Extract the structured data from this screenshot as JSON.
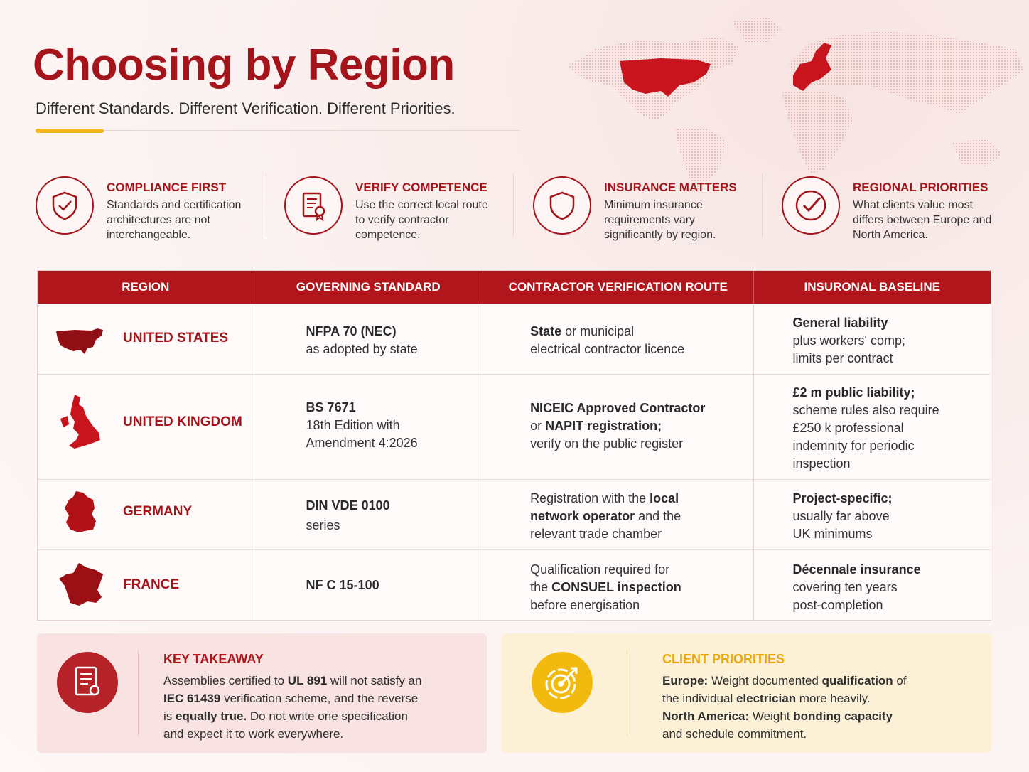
{
  "header": {
    "title": "Choosing by Region",
    "subtitle": "Different Standards. Different Verification. Different Priorities."
  },
  "features": [
    {
      "icon": "shield-check-icon",
      "title": "COMPLIANCE FIRST",
      "description": "Standards and certification architectures are not interchangeable."
    },
    {
      "icon": "certificate-icon",
      "title": "VERIFY COMPETENCE",
      "description": "Use the correct local route to verify contractor competence."
    },
    {
      "icon": "shield-icon",
      "title": "INSURANCE MATTERS",
      "description": "Minimum insurance requirements vary significantly by region."
    },
    {
      "icon": "check-circle-icon",
      "title": "REGIONAL PRIORITIES",
      "description": "What clients value most differs between Europe and North America."
    }
  ],
  "table": {
    "headers": [
      "REGION",
      "GOVERNING STANDARD",
      "CONTRACTOR VERIFICATION ROUTE",
      "INSURONAL BASELINE"
    ],
    "rows": [
      {
        "region": "UNITED STATES",
        "map_icon": "usa-map-icon",
        "standard": {
          "bold": "NFPA 70 (NEC)",
          "rest": "as adopted by state"
        },
        "verification": {
          "bold": "State",
          "rest": " or municipal",
          "line2": "electrical contractor licence"
        },
        "insurance": {
          "bold": "General liability",
          "line2": "plus workers' comp;",
          "line3": "limits per contract"
        }
      },
      {
        "region": "UNITED KINGDOM",
        "map_icon": "uk-map-icon",
        "standard": {
          "bold": "BS 7671",
          "line2": "18th Edition with",
          "line3": "Amendment 4:2026"
        },
        "verification": {
          "bold": "NICEIC Approved Contractor",
          "line2a": "or ",
          "line2b": "NAPIT registration;",
          "line3": "verify on the public register"
        },
        "insurance": {
          "bold": "£2 m public liability;",
          "line2": "scheme rules also require",
          "line3": "£250 k professional",
          "line4": "indemnity for periodic",
          "line5": "inspection"
        }
      },
      {
        "region": "GERMANY",
        "map_icon": "germany-map-icon",
        "standard": {
          "bold": "DIN VDE 0100",
          "rest": "series"
        },
        "verification": {
          "pre": "Registration with the ",
          "bold1": "local",
          "bold2": "network operator",
          "mid": " and the",
          "line3": "relevant trade chamber"
        },
        "insurance": {
          "bold": "Project-specific;",
          "line2": "usually far above",
          "line3": "UK minimums"
        }
      },
      {
        "region": "FRANCE",
        "map_icon": "france-map-icon",
        "standard": {
          "bold": "NF C 15-100"
        },
        "verification": {
          "line1": "Qualification required for",
          "pre": "the ",
          "bold": "CONSUEL inspection",
          "line3": "before energisation"
        },
        "insurance": {
          "bold": "Décennale insurance",
          "line2": "covering ten years",
          "line3": "post-completion"
        }
      }
    ]
  },
  "key_takeaway": {
    "title": "KEY TAKEAWAY",
    "icon": "document-certificate-icon",
    "t1": "Assemblies certified to ",
    "b1": "UL 891",
    "t2": " will not satisfy an",
    "b2": "IEC 61439",
    "t3": " verification scheme, and the reverse",
    "t4": "is ",
    "b3": "equally true.",
    "t5": " Do not write one specification",
    "t6": "and expect it to work everywhere."
  },
  "client_priorities": {
    "title": "CLIENT PRIORITIES",
    "icon": "target-icon",
    "b1": "Europe:",
    "t1": " Weight documented ",
    "b2": "qualification",
    "t2": " of",
    "t3": "the individual ",
    "b3": "electrician",
    "t4": " more heavily.",
    "b4": "North America:",
    "t5": " Weight ",
    "b5": "bonding capacity",
    "t6": "and schedule commitment."
  },
  "colors": {
    "brand_red": "#a4141a",
    "header_red": "#b0161b",
    "accent_yellow": "#f0b81c",
    "map_highlight": "#c8141c"
  }
}
